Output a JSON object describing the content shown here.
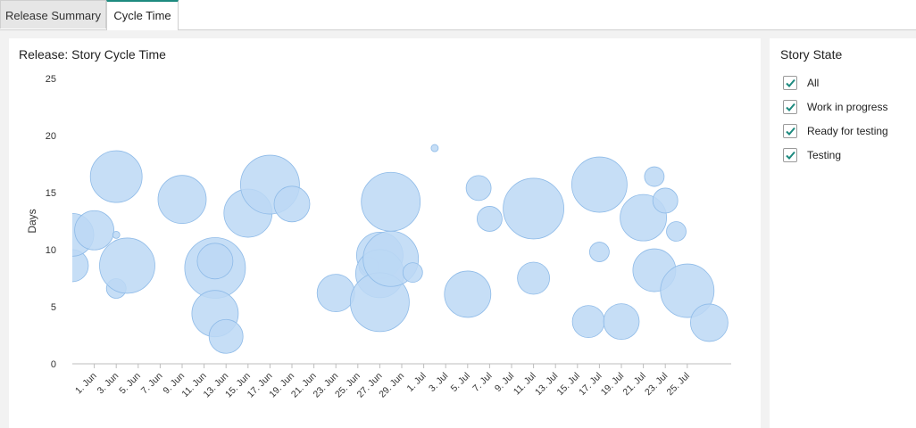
{
  "tabs": [
    {
      "label": "Release Summary",
      "active": false
    },
    {
      "label": "Cycle Time",
      "active": true
    }
  ],
  "filter": {
    "title": "Story State",
    "items": [
      {
        "label": "All",
        "checked": true
      },
      {
        "label": "Work in progress",
        "checked": true
      },
      {
        "label": "Ready for testing",
        "checked": true
      },
      {
        "label": "Testing",
        "checked": true
      }
    ]
  },
  "colors": {
    "bubble_fill": "#bcd8f5",
    "bubble_stroke": "#8fbbe8",
    "accent": "#1d8a7f"
  },
  "chart_data": {
    "type": "scatter",
    "title": "Release: Story Cycle Time",
    "ylabel": "Days",
    "xlabel": "",
    "ylim": [
      0,
      25
    ],
    "yticks": [
      0,
      5,
      10,
      15,
      20,
      25
    ],
    "xlim": [
      "2023-05-30",
      "2023-07-29"
    ],
    "xticks": [
      "1. Jun",
      "3. Jun",
      "5. Jun",
      "7. Jun",
      "9. Jun",
      "11. Jun",
      "13. Jun",
      "15. Jun",
      "17. Jun",
      "19. Jun",
      "21. Jun",
      "23. Jun",
      "25. Jun",
      "27. Jun",
      "29. Jun",
      "1. Jul",
      "3. Jul",
      "5. Jul",
      "7. Jul",
      "9. Jul",
      "11. Jul",
      "13. Jul",
      "15. Jul",
      "17. Jul",
      "19. Jul",
      "21. Jul",
      "23. Jul",
      "25. Jul"
    ],
    "grid": false,
    "bubble_size_encoded": true,
    "points": [
      {
        "x": "2023-05-30",
        "y": 8.6,
        "size": 18
      },
      {
        "x": "2023-05-30",
        "y": 11.3,
        "size": 24
      },
      {
        "x": "2023-06-01",
        "y": 11.7,
        "size": 22
      },
      {
        "x": "2023-06-03",
        "y": 16.4,
        "size": 29
      },
      {
        "x": "2023-06-03",
        "y": 11.3,
        "size": 4
      },
      {
        "x": "2023-06-03",
        "y": 6.6,
        "size": 11
      },
      {
        "x": "2023-06-04",
        "y": 8.6,
        "size": 31
      },
      {
        "x": "2023-06-09",
        "y": 14.4,
        "size": 27
      },
      {
        "x": "2023-06-12",
        "y": 8.4,
        "size": 34
      },
      {
        "x": "2023-06-12",
        "y": 9.0,
        "size": 20
      },
      {
        "x": "2023-06-12",
        "y": 4.4,
        "size": 26
      },
      {
        "x": "2023-06-13",
        "y": 2.4,
        "size": 19
      },
      {
        "x": "2023-06-15",
        "y": 13.2,
        "size": 27
      },
      {
        "x": "2023-06-17",
        "y": 15.7,
        "size": 33
      },
      {
        "x": "2023-06-19",
        "y": 14.0,
        "size": 20
      },
      {
        "x": "2023-06-23",
        "y": 6.2,
        "size": 21
      },
      {
        "x": "2023-06-26",
        "y": 8.5,
        "size": 11
      },
      {
        "x": "2023-06-27",
        "y": 9.5,
        "size": 26
      },
      {
        "x": "2023-06-27",
        "y": 7.9,
        "size": 27
      },
      {
        "x": "2023-06-27",
        "y": 5.4,
        "size": 33
      },
      {
        "x": "2023-06-28",
        "y": 9.2,
        "size": 31
      },
      {
        "x": "2023-06-28",
        "y": 14.2,
        "size": 33
      },
      {
        "x": "2023-06-30",
        "y": 8.0,
        "size": 11
      },
      {
        "x": "2023-07-02",
        "y": 18.9,
        "size": 4
      },
      {
        "x": "2023-07-05",
        "y": 6.1,
        "size": 26
      },
      {
        "x": "2023-07-06",
        "y": 15.4,
        "size": 14
      },
      {
        "x": "2023-07-07",
        "y": 12.7,
        "size": 14
      },
      {
        "x": "2023-07-11",
        "y": 7.5,
        "size": 18
      },
      {
        "x": "2023-07-11",
        "y": 13.6,
        "size": 34
      },
      {
        "x": "2023-07-16",
        "y": 3.7,
        "size": 18
      },
      {
        "x": "2023-07-17",
        "y": 15.7,
        "size": 31
      },
      {
        "x": "2023-07-17",
        "y": 9.8,
        "size": 11
      },
      {
        "x": "2023-07-19",
        "y": 3.7,
        "size": 20
      },
      {
        "x": "2023-07-21",
        "y": 12.8,
        "size": 26
      },
      {
        "x": "2023-07-22",
        "y": 16.4,
        "size": 11
      },
      {
        "x": "2023-07-22",
        "y": 8.2,
        "size": 24
      },
      {
        "x": "2023-07-23",
        "y": 14.3,
        "size": 14
      },
      {
        "x": "2023-07-24",
        "y": 11.6,
        "size": 11
      },
      {
        "x": "2023-07-25",
        "y": 6.4,
        "size": 30
      },
      {
        "x": "2023-07-27",
        "y": 3.6,
        "size": 21
      }
    ]
  }
}
